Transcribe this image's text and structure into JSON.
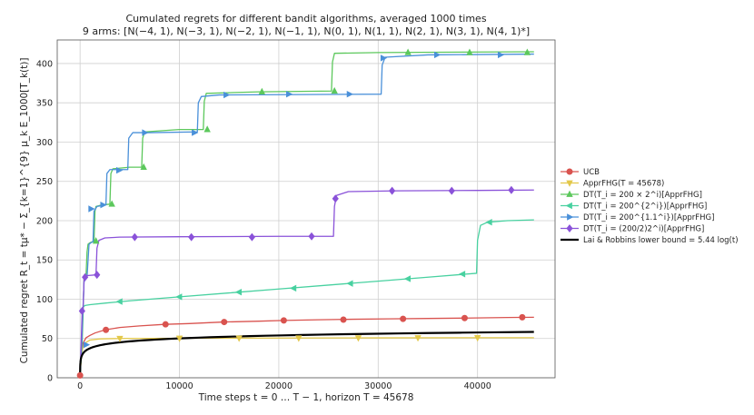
{
  "chart_data": {
    "type": "line",
    "title": "Cumulated regrets for different bandit algorithms, averaged 1000 times",
    "subtitle": "9 arms: [N(−4, 1), N(−3, 1), N(−2, 1), N(−1, 1), N(0, 1), N(1, 1), N(2, 1), N(3, 1), N(4, 1)*]",
    "xlabel": "Time steps t = 0 … T − 1, horizon T = 45678",
    "ylabel": "Cumulated regret R_t = tμ* − Σ_{k=1}^{9} μ_k E_1000[T_k(t)]",
    "xlim": [
      -2300,
      47800
    ],
    "ylim": [
      0,
      430
    ],
    "xticks": [
      0,
      10000,
      20000,
      30000,
      40000
    ],
    "yticks": [
      0,
      50,
      100,
      150,
      200,
      250,
      300,
      350,
      400
    ],
    "grid": true,
    "legend_position": "right",
    "series": [
      {
        "name": "UCB",
        "color": "#d9534f",
        "marker": "circle",
        "points": [
          [
            0,
            3
          ],
          [
            150,
            33
          ],
          [
            300,
            44
          ],
          [
            600,
            51
          ],
          [
            1000,
            54
          ],
          [
            1500,
            57
          ],
          [
            2500,
            61
          ],
          [
            4000,
            64
          ],
          [
            6000,
            66
          ],
          [
            8500,
            68
          ],
          [
            11000,
            69
          ],
          [
            14500,
            71
          ],
          [
            18000,
            72
          ],
          [
            20500,
            73
          ],
          [
            24000,
            73.8
          ],
          [
            27500,
            74.5
          ],
          [
            31000,
            75
          ],
          [
            35000,
            75.5
          ],
          [
            39000,
            76
          ],
          [
            43000,
            76.7
          ],
          [
            45678,
            77
          ]
        ],
        "markers": [
          [
            0,
            3
          ],
          [
            2600,
            61
          ],
          [
            8600,
            68
          ],
          [
            14500,
            71
          ],
          [
            20500,
            73
          ],
          [
            26500,
            74
          ],
          [
            32500,
            75
          ],
          [
            38700,
            76
          ],
          [
            44500,
            77
          ]
        ]
      },
      {
        "name": "ApprFHG(T = 45678)",
        "color": "#e3c84a",
        "marker": "triangle-down",
        "points": [
          [
            0,
            3
          ],
          [
            150,
            30
          ],
          [
            300,
            39
          ],
          [
            600,
            45
          ],
          [
            1000,
            48
          ],
          [
            2000,
            49.5
          ],
          [
            4000,
            50
          ],
          [
            10000,
            50.3
          ],
          [
            20000,
            50.6
          ],
          [
            30000,
            50.8
          ],
          [
            40000,
            51
          ],
          [
            45678,
            51
          ]
        ],
        "markers": [
          [
            4000,
            50
          ],
          [
            10000,
            50.3
          ],
          [
            16000,
            50.5
          ],
          [
            22000,
            50.6
          ],
          [
            28000,
            50.8
          ],
          [
            34000,
            50.9
          ],
          [
            40000,
            51
          ]
        ]
      },
      {
        "name": "DT(T_i = 200 × 2^i)[ApprFHG]",
        "color": "#5cc85c",
        "marker": "triangle-up",
        "points": [
          [
            0,
            3
          ],
          [
            150,
            35
          ],
          [
            200,
            42
          ],
          [
            300,
            80
          ],
          [
            400,
            128
          ],
          [
            500,
            130
          ],
          [
            600,
            130
          ],
          [
            700,
            160
          ],
          [
            800,
            170
          ],
          [
            1000,
            172
          ],
          [
            1200,
            173
          ],
          [
            1400,
            173
          ],
          [
            1500,
            212
          ],
          [
            1600,
            218
          ],
          [
            2200,
            220
          ],
          [
            3000,
            221
          ],
          [
            3100,
            260
          ],
          [
            3300,
            266
          ],
          [
            5000,
            268
          ],
          [
            6200,
            268
          ],
          [
            6300,
            305
          ],
          [
            6500,
            313
          ],
          [
            10000,
            316
          ],
          [
            12400,
            316
          ],
          [
            12500,
            352
          ],
          [
            12700,
            362
          ],
          [
            18000,
            364
          ],
          [
            25300,
            365
          ],
          [
            25400,
            402
          ],
          [
            25600,
            413
          ],
          [
            30000,
            414
          ],
          [
            45678,
            415
          ]
        ],
        "markers": [
          [
            1600,
            174
          ],
          [
            3200,
            221
          ],
          [
            6400,
            268
          ],
          [
            12800,
            316
          ],
          [
            18300,
            364
          ],
          [
            25600,
            365
          ],
          [
            33000,
            414
          ],
          [
            39200,
            414
          ],
          [
            45000,
            414
          ]
        ]
      },
      {
        "name": "DT(T_i = 200^{2^i})[ApprFHG]",
        "color": "#48d1a0",
        "marker": "triangle-left",
        "points": [
          [
            0,
            3
          ],
          [
            150,
            36
          ],
          [
            250,
            78
          ],
          [
            300,
            90
          ],
          [
            500,
            92
          ],
          [
            1000,
            93
          ],
          [
            2500,
            95
          ],
          [
            5000,
            98
          ],
          [
            10000,
            103
          ],
          [
            15000,
            108
          ],
          [
            20000,
            113
          ],
          [
            25000,
            118
          ],
          [
            30000,
            123
          ],
          [
            35000,
            128
          ],
          [
            39900,
            133
          ],
          [
            40000,
            175
          ],
          [
            40300,
            194
          ],
          [
            41000,
            198
          ],
          [
            43000,
            200
          ],
          [
            45678,
            201
          ]
        ],
        "markers": [
          [
            4000,
            97
          ],
          [
            10000,
            103
          ],
          [
            16000,
            109
          ],
          [
            21500,
            114
          ],
          [
            27200,
            120
          ],
          [
            33000,
            126
          ],
          [
            38500,
            132
          ],
          [
            41200,
            198
          ]
        ]
      },
      {
        "name": "DT(T_i = 200^{1.1^i})[ApprFHG]",
        "color": "#4a90d9",
        "marker": "triangle-right",
        "points": [
          [
            0,
            3
          ],
          [
            150,
            38
          ],
          [
            250,
            75
          ],
          [
            400,
            122
          ],
          [
            500,
            126
          ],
          [
            700,
            128
          ],
          [
            900,
            170
          ],
          [
            1100,
            172
          ],
          [
            1300,
            173
          ],
          [
            1400,
            212
          ],
          [
            1700,
            218
          ],
          [
            2600,
            220
          ],
          [
            2700,
            260
          ],
          [
            3000,
            265
          ],
          [
            4800,
            265
          ],
          [
            4900,
            305
          ],
          [
            5300,
            312
          ],
          [
            7000,
            312
          ],
          [
            11800,
            313
          ],
          [
            11900,
            350
          ],
          [
            12200,
            358
          ],
          [
            14000,
            360
          ],
          [
            30300,
            361
          ],
          [
            30400,
            398
          ],
          [
            30700,
            408
          ],
          [
            35000,
            411
          ],
          [
            45678,
            412
          ]
        ],
        "markers": [
          [
            600,
            42
          ],
          [
            1100,
            215
          ],
          [
            2300,
            220
          ],
          [
            3900,
            264
          ],
          [
            6500,
            312
          ],
          [
            11500,
            312
          ],
          [
            14700,
            360
          ],
          [
            21000,
            361
          ],
          [
            27100,
            361
          ],
          [
            30500,
            407
          ],
          [
            35900,
            411
          ],
          [
            42300,
            411
          ]
        ]
      },
      {
        "name": "DT(T_i = (200/2)2^i)[ApprFHG]",
        "color": "#8a52d9",
        "marker": "diamond",
        "points": [
          [
            0,
            3
          ],
          [
            150,
            60
          ],
          [
            200,
            80
          ],
          [
            300,
            86
          ],
          [
            400,
            126
          ],
          [
            500,
            128
          ],
          [
            700,
            130
          ],
          [
            1600,
            131
          ],
          [
            1700,
            165
          ],
          [
            1900,
            175
          ],
          [
            2500,
            178
          ],
          [
            4000,
            179
          ],
          [
            10000,
            179.5
          ],
          [
            20000,
            180
          ],
          [
            25500,
            180
          ],
          [
            25600,
            218
          ],
          [
            25800,
            232
          ],
          [
            27000,
            237
          ],
          [
            32000,
            238
          ],
          [
            40000,
            238.5
          ],
          [
            45678,
            239
          ]
        ],
        "markers": [
          [
            200,
            85
          ],
          [
            500,
            128
          ],
          [
            1700,
            131
          ],
          [
            5500,
            179
          ],
          [
            11200,
            179
          ],
          [
            17300,
            179
          ],
          [
            23300,
            180
          ],
          [
            25700,
            228
          ],
          [
            31400,
            238
          ],
          [
            37400,
            238
          ],
          [
            43400,
            239
          ]
        ]
      },
      {
        "name": "Lai & Robbins lower bound = 5.44 log(t)",
        "color": "#000000",
        "marker": "none",
        "lower_bound_coefficient": 5.44
      }
    ]
  }
}
